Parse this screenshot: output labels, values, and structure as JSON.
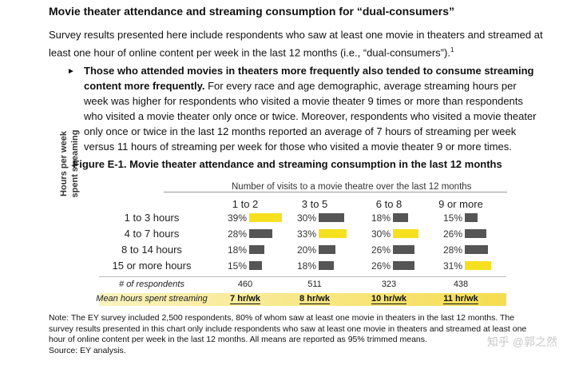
{
  "heading": "Movie theater attendance and streaming consumption for “dual-consumers”",
  "intro": {
    "text": "Survey results presented here include respondents who saw at least one movie in theaters and streamed at least one hour of online content per week in the last 12 months (i.e., “dual-consumers”).",
    "footnote_ref": "1"
  },
  "bullet": {
    "marker": "►",
    "bold": "Those who attended movies in theaters more frequently also tended to consume streaming content more frequently.",
    "rest": " For every race and age demographic, average streaming hours per week was higher for respondents who visited a movie theater 9 times or more than respondents who visited a movie theater only once or twice. Moreover, respondents who visited a movie theater only once or twice in the last 12 months reported an average of 7 hours of streaming per week versus 11 hours of streaming per week for those who visited a movie theater 9 or more times."
  },
  "figure_title": "Figure E-1. Movie theater attendance and streaming consumption in the last 12 months",
  "chart_data": {
    "type": "table",
    "column_group_title": "Number of visits to a movie theatre over the last 12 months",
    "row_axis_title": "Hours per week spent streaming",
    "columns": [
      "1 to 2",
      "3 to 5",
      "6 to 8",
      "9 or more"
    ],
    "rows": [
      {
        "label": "1 to 3 hours",
        "values": [
          39,
          30,
          18,
          15
        ],
        "highlight": [
          true,
          false,
          false,
          false
        ]
      },
      {
        "label": "4 to 7 hours",
        "values": [
          28,
          33,
          30,
          26
        ],
        "highlight": [
          false,
          true,
          true,
          false
        ]
      },
      {
        "label": "8 to 14 hours",
        "values": [
          18,
          20,
          26,
          28
        ],
        "highlight": [
          false,
          false,
          false,
          false
        ]
      },
      {
        "label": "15 or more hours",
        "values": [
          15,
          18,
          26,
          31
        ],
        "highlight": [
          false,
          false,
          false,
          true
        ]
      }
    ],
    "respondents_label": "# of respondents",
    "respondents": [
      "460",
      "511",
      "323",
      "438"
    ],
    "mean_label": "Mean hours spent streaming",
    "means": [
      "7 hr/wk",
      "8 hr/wk",
      "10 hr/wk",
      "11 hr/wk"
    ],
    "colors": {
      "highlight": "#f6e01f",
      "normal": "#555555"
    }
  },
  "note": "Note: The EY survey included 2,500 respondents, 80% of whom saw at least one movie in theaters in the last 12 months. The survey results presented in this chart only include respondents who saw at least one movie in theaters and streamed at least one hour of online content per week in the last 12 months. All means are reported as 95% trimmed means.",
  "source": "Source: EY analysis.",
  "watermark": "知乎 @郭之然"
}
